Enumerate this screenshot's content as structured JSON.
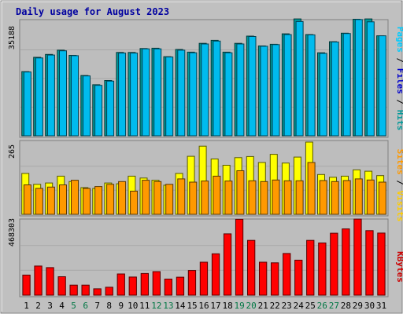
{
  "chart_data": {
    "type": "bar",
    "title": "Daily usage for August 2023",
    "categories": [
      "1",
      "2",
      "3",
      "4",
      "5",
      "6",
      "7",
      "8",
      "9",
      "10",
      "11",
      "12",
      "13",
      "14",
      "15",
      "16",
      "17",
      "18",
      "19",
      "20",
      "21",
      "22",
      "23",
      "24",
      "25",
      "26",
      "27",
      "28",
      "29",
      "30",
      "31"
    ],
    "weekend_days": [
      "5",
      "6",
      "12",
      "13",
      "19",
      "20",
      "26",
      "27"
    ],
    "panels": [
      {
        "id": "hits-files-pages",
        "ymax_label": "35188",
        "ylim": [
          0,
          35188
        ],
        "side_label": [
          "Pages",
          "Files",
          "Hits"
        ],
        "series": [
          {
            "name": "Hits",
            "color": "#009999",
            "values": [
              19700,
              24100,
              25000,
              26300,
              24700,
              18500,
              15700,
              17000,
              25600,
              25600,
              26800,
              26900,
              24300,
              26500,
              25700,
              28400,
              29300,
              25700,
              28400,
              30600,
              27600,
              28100,
              31300,
              36000,
              31100,
              25500,
              28900,
              31500,
              35800,
              36000,
              30700
            ]
          },
          {
            "name": "Files",
            "color": "#00bbee",
            "values": [
              19600,
              23900,
              24800,
              26100,
              24600,
              18400,
              15500,
              16800,
              25400,
              25400,
              26700,
              26700,
              24200,
              26300,
              25500,
              28200,
              29100,
              25500,
              28200,
              30500,
              27500,
              28000,
              31100,
              35100,
              31000,
              25300,
              28800,
              31400,
              35700,
              35000,
              30700
            ]
          }
        ]
      },
      {
        "id": "visits-sites",
        "ymax_label": "265",
        "ylim": [
          0,
          265
        ],
        "side_label": [
          "Sites",
          "Visits"
        ],
        "series": [
          {
            "name": "Visits",
            "color": "#ffff00",
            "values": [
              150,
              110,
              115,
              140,
              120,
              98,
              95,
              115,
              112,
              140,
              133,
              125,
              107,
              150,
              213,
              250,
              203,
              180,
              208,
              212,
              190,
              220,
              188,
              210,
              265,
              146,
              136,
              140,
              163,
              158,
              142
            ]
          },
          {
            "name": "Sites",
            "color": "#ff9900",
            "values": [
              108,
              95,
              100,
              108,
              125,
              95,
              102,
              110,
              120,
              85,
              125,
              120,
              110,
              130,
              118,
              122,
              140,
              122,
              160,
              123,
              120,
              126,
              123,
              123,
              190,
              124,
              120,
              124,
              130,
              126,
              118
            ]
          }
        ]
      },
      {
        "id": "kbytes",
        "ymax_label": "468303",
        "ylim": [
          0,
          468303
        ],
        "side_label": [
          "KBytes"
        ],
        "series": [
          {
            "name": "KBytes",
            "color": "#ff0000",
            "values": [
              126000,
              183000,
              173000,
              116000,
              63000,
              63000,
              40000,
              50000,
              133000,
              114000,
              136000,
              148000,
              101000,
              113000,
              155000,
              207000,
              260000,
              385000,
              476000,
              344000,
              207000,
              203000,
              262000,
              220000,
              344000,
              328000,
              389000,
              416000,
              485000,
              405000,
              390000
            ]
          }
        ]
      }
    ]
  }
}
